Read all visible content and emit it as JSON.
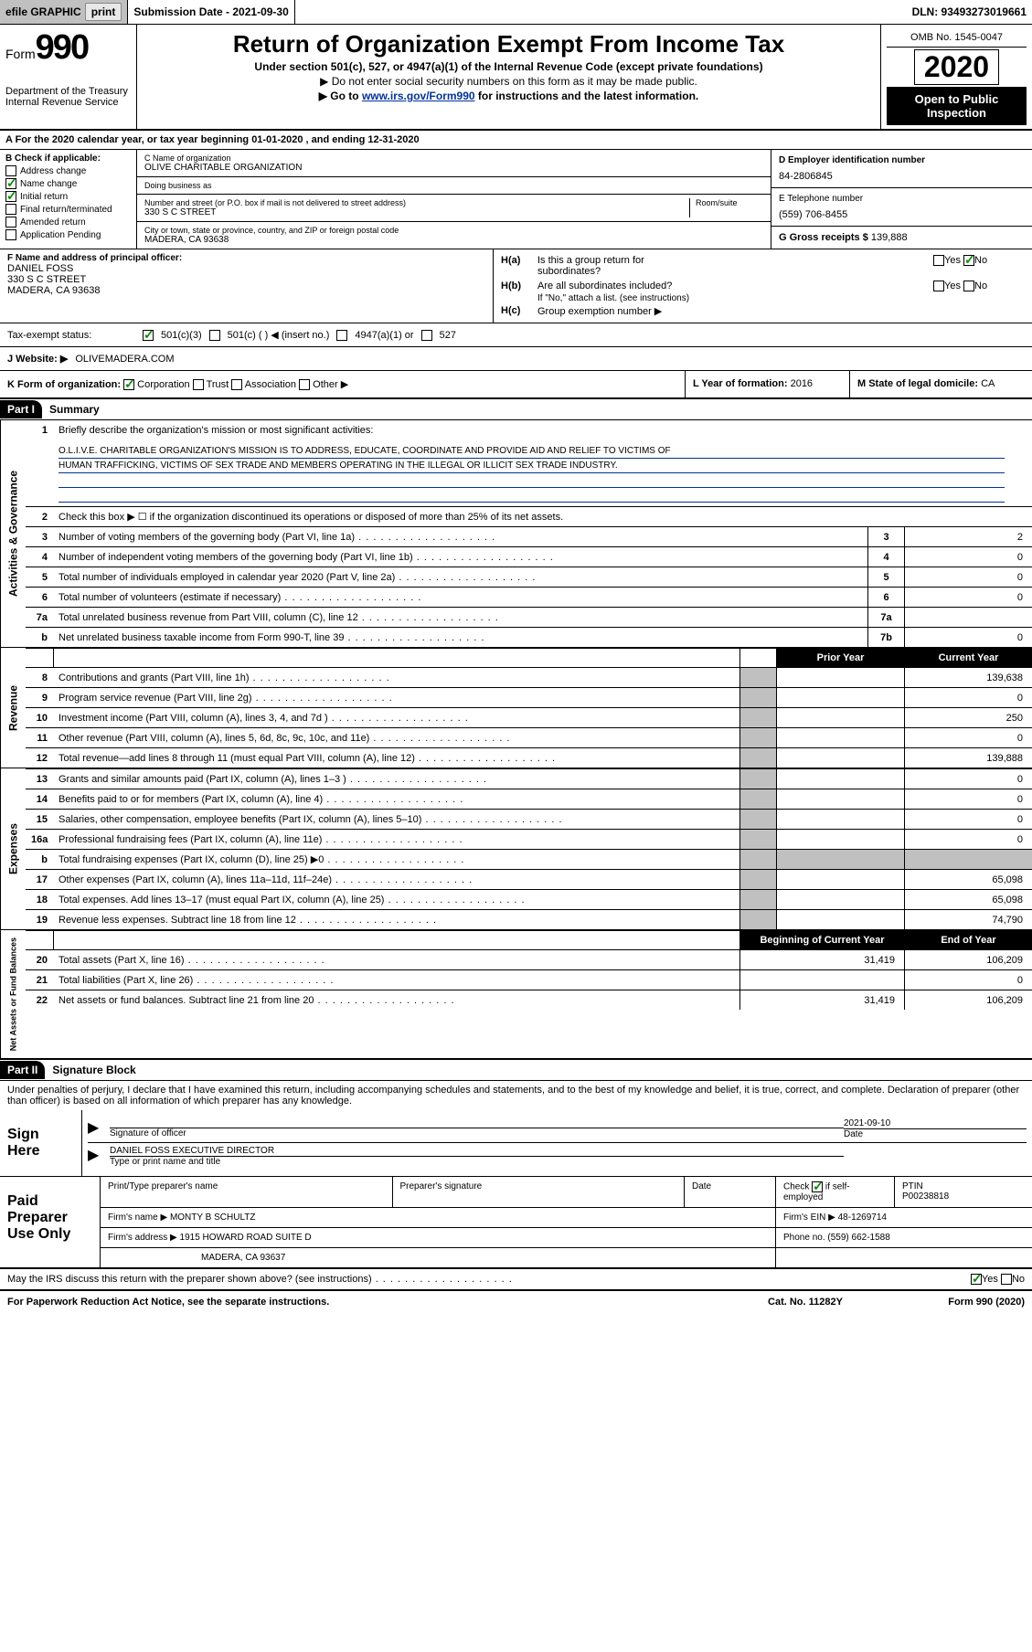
{
  "topbar": {
    "efile_label": "efile GRAPHIC",
    "print_btn": "print",
    "submission_label": "Submission Date - 2021-09-30",
    "dln": "DLN: 93493273019661"
  },
  "header": {
    "form_prefix": "Form",
    "form_num": "990",
    "dept1": "Department of the Treasury",
    "dept2": "Internal Revenue Service",
    "title": "Return of Organization Exempt From Income Tax",
    "sub1": "Under section 501(c), 527, or 4947(a)(1) of the Internal Revenue Code (except private foundations)",
    "sub2": "▶ Do not enter social security numbers on this form as it may be made public.",
    "sub3_pre": "▶ Go to ",
    "sub3_link": "www.irs.gov/Form990",
    "sub3_post": " for instructions and the latest information.",
    "omb": "OMB No. 1545-0047",
    "year": "2020",
    "open": "Open to Public Inspection"
  },
  "row_a": "A For the 2020 calendar year, or tax year beginning 01-01-2020   , and ending 12-31-2020",
  "box_b": {
    "label": "B Check if applicable:",
    "items": [
      {
        "label": "Address change",
        "checked": false
      },
      {
        "label": "Name change",
        "checked": true
      },
      {
        "label": "Initial return",
        "checked": true
      },
      {
        "label": "Final return/terminated",
        "checked": false
      },
      {
        "label": "Amended return",
        "checked": false
      },
      {
        "label": "Application Pending",
        "checked": false
      }
    ]
  },
  "box_c": {
    "name_label": "C Name of organization",
    "name": "OLIVE CHARITABLE ORGANIZATION",
    "dba_label": "Doing business as",
    "dba": "",
    "street_label": "Number and street (or P.O. box if mail is not delivered to street address)",
    "room_label": "Room/suite",
    "street": "330 S C STREET",
    "city_label": "City or town, state or province, country, and ZIP or foreign postal code",
    "city": "MADERA, CA  93638"
  },
  "box_d": {
    "label": "D Employer identification number",
    "value": "84-2806845"
  },
  "box_e": {
    "label": "E Telephone number",
    "value": "(559) 706-8455"
  },
  "box_g": {
    "label": "G Gross receipts $",
    "value": "139,888"
  },
  "box_f": {
    "label": "F  Name and address of principal officer:",
    "name": "DANIEL FOSS",
    "street": "330 S C STREET",
    "city": "MADERA, CA  93638"
  },
  "box_h": {
    "ha_label": "Is this a group return for",
    "ha_sub": "subordinates?",
    "ha_yes": "Yes",
    "ha_no": "No",
    "hb_label": "Are all subordinates included?",
    "hb_yes": "Yes",
    "hb_no": "No",
    "hb_note": "If \"No,\" attach a list. (see instructions)",
    "hc_label": "Group exemption number ▶"
  },
  "row_tax": {
    "label": "Tax-exempt status:",
    "o1": "501(c)(3)",
    "o2": "501(c) (  ) ◀ (insert no.)",
    "o3": "4947(a)(1) or",
    "o4": "527"
  },
  "row_j": {
    "label": "J   Website: ▶",
    "value": "OLIVEMADERA.COM"
  },
  "row_k": {
    "label": "K Form of organization:",
    "o1": "Corporation",
    "o2": "Trust",
    "o3": "Association",
    "o4": "Other ▶",
    "l_label": "L Year of formation:",
    "l_val": "2016",
    "m_label": "M State of legal domicile:",
    "m_val": "CA"
  },
  "part1": {
    "header": "Part I",
    "title": "Summary"
  },
  "mission": {
    "num": "1",
    "label": "Briefly describe the organization's mission or most significant activities:",
    "text1": "O.L.I.V.E. CHARITABLE ORGANIZATION'S MISSION IS TO ADDRESS, EDUCATE, COORDINATE AND PROVIDE AID AND RELIEF TO VICTIMS OF",
    "text2": "HUMAN TRAFFICKING, VICTIMS OF SEX TRADE AND MEMBERS OPERATING IN THE ILLEGAL OR ILLICIT SEX TRADE INDUSTRY."
  },
  "gov_lines": [
    {
      "num": "2",
      "label": "Check this box ▶ ☐  if the organization discontinued its operations or disposed of more than 25% of its net assets.",
      "nobox": true
    },
    {
      "num": "3",
      "label": "Number of voting members of the governing body (Part VI, line 1a)",
      "box": "3",
      "val": "2"
    },
    {
      "num": "4",
      "label": "Number of independent voting members of the governing body (Part VI, line 1b)",
      "box": "4",
      "val": "0"
    },
    {
      "num": "5",
      "label": "Total number of individuals employed in calendar year 2020 (Part V, line 2a)",
      "box": "5",
      "val": "0"
    },
    {
      "num": "6",
      "label": "Total number of volunteers (estimate if necessary)",
      "box": "6",
      "val": "0"
    },
    {
      "num": "7a",
      "label": "Total unrelated business revenue from Part VIII, column (C), line 12",
      "box": "7a",
      "val": ""
    },
    {
      "num": "b",
      "label": "Net unrelated business taxable income from Form 990-T, line 39",
      "box": "7b",
      "val": "0"
    }
  ],
  "py_cy": {
    "prior": "Prior Year",
    "current": "Current Year"
  },
  "rev_lines": [
    {
      "num": "8",
      "label": "Contributions and grants (Part VIII, line 1h)",
      "py": "",
      "cy": "139,638"
    },
    {
      "num": "9",
      "label": "Program service revenue (Part VIII, line 2g)",
      "py": "",
      "cy": "0"
    },
    {
      "num": "10",
      "label": "Investment income (Part VIII, column (A), lines 3, 4, and 7d )",
      "py": "",
      "cy": "250"
    },
    {
      "num": "11",
      "label": "Other revenue (Part VIII, column (A), lines 5, 6d, 8c, 9c, 10c, and 11e)",
      "py": "",
      "cy": "0"
    },
    {
      "num": "12",
      "label": "Total revenue—add lines 8 through 11 (must equal Part VIII, column (A), line 12)",
      "py": "",
      "cy": "139,888"
    }
  ],
  "exp_lines": [
    {
      "num": "13",
      "label": "Grants and similar amounts paid (Part IX, column (A), lines 1–3 )",
      "py": "",
      "cy": "0"
    },
    {
      "num": "14",
      "label": "Benefits paid to or for members (Part IX, column (A), line 4)",
      "py": "",
      "cy": "0"
    },
    {
      "num": "15",
      "label": "Salaries, other compensation, employee benefits (Part IX, column (A), lines 5–10)",
      "py": "",
      "cy": "0"
    },
    {
      "num": "16a",
      "label": "Professional fundraising fees (Part IX, column (A), line 11e)",
      "py": "",
      "cy": "0"
    },
    {
      "num": "b",
      "label": "Total fundraising expenses (Part IX, column (D), line 25) ▶0",
      "py": "shade",
      "cy": "shade"
    },
    {
      "num": "17",
      "label": "Other expenses (Part IX, column (A), lines 11a–11d, 11f–24e)",
      "py": "",
      "cy": "65,098"
    },
    {
      "num": "18",
      "label": "Total expenses. Add lines 13–17 (must equal Part IX, column (A), line 25)",
      "py": "",
      "cy": "65,098"
    },
    {
      "num": "19",
      "label": "Revenue less expenses. Subtract line 18 from line 12",
      "py": "",
      "cy": "74,790"
    }
  ],
  "na_header": {
    "begin": "Beginning of Current Year",
    "end": "End of Year"
  },
  "na_lines": [
    {
      "num": "20",
      "label": "Total assets (Part X, line 16)",
      "begin": "31,419",
      "end": "106,209"
    },
    {
      "num": "21",
      "label": "Total liabilities (Part X, line 26)",
      "begin": "",
      "end": "0"
    },
    {
      "num": "22",
      "label": "Net assets or fund balances. Subtract line 21 from line 20",
      "begin": "31,419",
      "end": "106,209"
    }
  ],
  "part2": {
    "header": "Part II",
    "title": "Signature Block"
  },
  "sig": {
    "text": "Under penalties of perjury, I declare that I have examined this return, including accompanying schedules and statements, and to the best of my knowledge and belief, it is true, correct, and complete. Declaration of preparer (other than officer) is based on all information of which preparer has any knowledge.",
    "sign_here": "Sign Here",
    "sig_label": "Signature of officer",
    "date_label": "Date",
    "date_val": "2021-09-10",
    "name": "DANIEL FOSS  EXECUTIVE DIRECTOR",
    "name_label": "Type or print name and title"
  },
  "prep": {
    "label": "Paid Preparer Use Only",
    "r1c1": "Print/Type preparer's name",
    "r1c2": "Preparer's signature",
    "r1c3": "Date",
    "r1c4a": "Check",
    "r1c4b": "if self-employed",
    "r1c5a": "PTIN",
    "r1c5b": "P00238818",
    "r2c1_label": "Firm's name   ▶",
    "r2c1_val": "MONTY B SCHULTZ",
    "r2c2_label": "Firm's EIN ▶",
    "r2c2_val": "48-1269714",
    "r3c1_label": "Firm's address ▶",
    "r3c1_val": "1915 HOWARD ROAD SUITE D",
    "r3c2_label": "Phone no.",
    "r3c2_val": "(559) 662-1588",
    "r4c1": "MADERA, CA  93637"
  },
  "discuss": {
    "label": "May the IRS discuss this return with the preparer shown above? (see instructions)",
    "yes": "Yes",
    "no": "No"
  },
  "footer": {
    "left": "For Paperwork Reduction Act Notice, see the separate instructions.",
    "mid": "Cat. No. 11282Y",
    "right": "Form 990 (2020)"
  },
  "vert": {
    "gov": "Activities & Governance",
    "rev": "Revenue",
    "exp": "Expenses",
    "na": "Net Assets or Fund Balances"
  }
}
